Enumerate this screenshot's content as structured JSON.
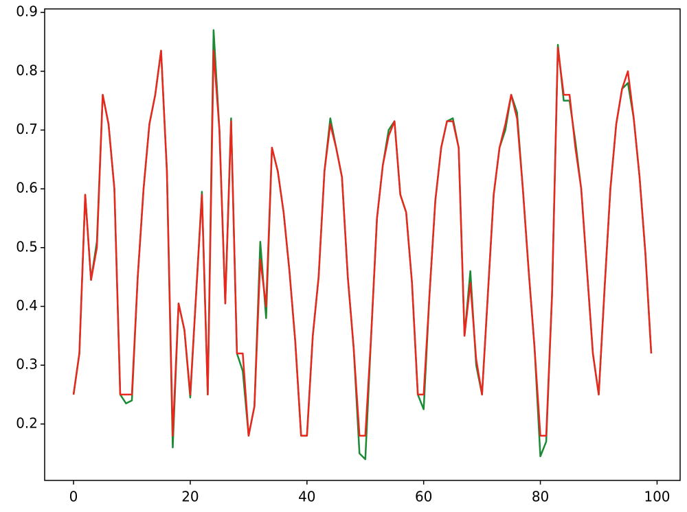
{
  "chart_data": {
    "type": "line",
    "x": [
      0,
      1,
      2,
      3,
      4,
      5,
      6,
      7,
      8,
      9,
      10,
      11,
      12,
      13,
      14,
      15,
      16,
      17,
      18,
      19,
      20,
      21,
      22,
      23,
      24,
      25,
      26,
      27,
      28,
      29,
      30,
      31,
      32,
      33,
      34,
      35,
      36,
      37,
      38,
      39,
      40,
      41,
      42,
      43,
      44,
      45,
      46,
      47,
      48,
      49,
      50,
      51,
      52,
      53,
      54,
      55,
      56,
      57,
      58,
      59,
      60,
      61,
      62,
      63,
      64,
      65,
      66,
      67,
      68,
      69,
      70,
      71,
      72,
      73,
      74,
      75,
      76,
      77,
      78,
      79,
      80,
      81,
      82,
      83,
      84,
      85,
      86,
      87,
      88,
      89,
      90,
      91,
      92,
      93,
      94,
      95,
      96,
      97,
      98,
      99
    ],
    "series": [
      {
        "color": "#1a8a34",
        "values": [
          0.25,
          0.32,
          0.59,
          0.445,
          0.51,
          0.76,
          0.71,
          0.6,
          0.25,
          0.235,
          0.24,
          0.45,
          0.6,
          0.71,
          0.76,
          0.835,
          0.63,
          0.16,
          0.405,
          0.36,
          0.245,
          0.42,
          0.595,
          0.25,
          0.87,
          0.7,
          0.405,
          0.72,
          0.32,
          0.29,
          0.18,
          0.23,
          0.51,
          0.38,
          0.67,
          0.63,
          0.56,
          0.46,
          0.34,
          0.18,
          0.18,
          0.35,
          0.45,
          0.63,
          0.72,
          0.67,
          0.62,
          0.45,
          0.33,
          0.15,
          0.14,
          0.35,
          0.55,
          0.64,
          0.7,
          0.715,
          0.59,
          0.56,
          0.44,
          0.25,
          0.225,
          0.42,
          0.58,
          0.67,
          0.715,
          0.72,
          0.67,
          0.35,
          0.46,
          0.3,
          0.25,
          0.42,
          0.59,
          0.67,
          0.7,
          0.76,
          0.73,
          0.6,
          0.46,
          0.33,
          0.145,
          0.17,
          0.42,
          0.845,
          0.75,
          0.75,
          0.68,
          0.6,
          0.46,
          0.32,
          0.25,
          0.43,
          0.6,
          0.71,
          0.77,
          0.78,
          0.72,
          0.62,
          0.49,
          0.32
        ]
      },
      {
        "color": "#e8281e",
        "values": [
          0.25,
          0.32,
          0.59,
          0.445,
          0.5,
          0.76,
          0.71,
          0.6,
          0.25,
          0.25,
          0.25,
          0.45,
          0.6,
          0.71,
          0.76,
          0.835,
          0.63,
          0.18,
          0.405,
          0.36,
          0.25,
          0.42,
          0.59,
          0.25,
          0.835,
          0.7,
          0.405,
          0.715,
          0.32,
          0.32,
          0.18,
          0.23,
          0.48,
          0.4,
          0.67,
          0.63,
          0.56,
          0.46,
          0.34,
          0.18,
          0.18,
          0.35,
          0.45,
          0.63,
          0.71,
          0.67,
          0.62,
          0.45,
          0.33,
          0.18,
          0.18,
          0.35,
          0.55,
          0.64,
          0.69,
          0.715,
          0.59,
          0.56,
          0.44,
          0.25,
          0.25,
          0.42,
          0.58,
          0.67,
          0.715,
          0.715,
          0.67,
          0.35,
          0.44,
          0.31,
          0.25,
          0.42,
          0.59,
          0.67,
          0.71,
          0.76,
          0.72,
          0.6,
          0.46,
          0.33,
          0.18,
          0.18,
          0.42,
          0.84,
          0.76,
          0.76,
          0.67,
          0.6,
          0.46,
          0.32,
          0.25,
          0.43,
          0.6,
          0.71,
          0.77,
          0.8,
          0.72,
          0.62,
          0.49,
          0.32
        ]
      }
    ],
    "xlim": [
      -4.95,
      103.95
    ],
    "xticks": [
      0,
      20,
      40,
      60,
      80,
      100
    ],
    "ylim": [
      0.104,
      0.906
    ],
    "yticks": [
      0.2,
      0.3,
      0.4,
      0.5,
      0.6,
      0.7,
      0.8,
      0.9
    ]
  }
}
